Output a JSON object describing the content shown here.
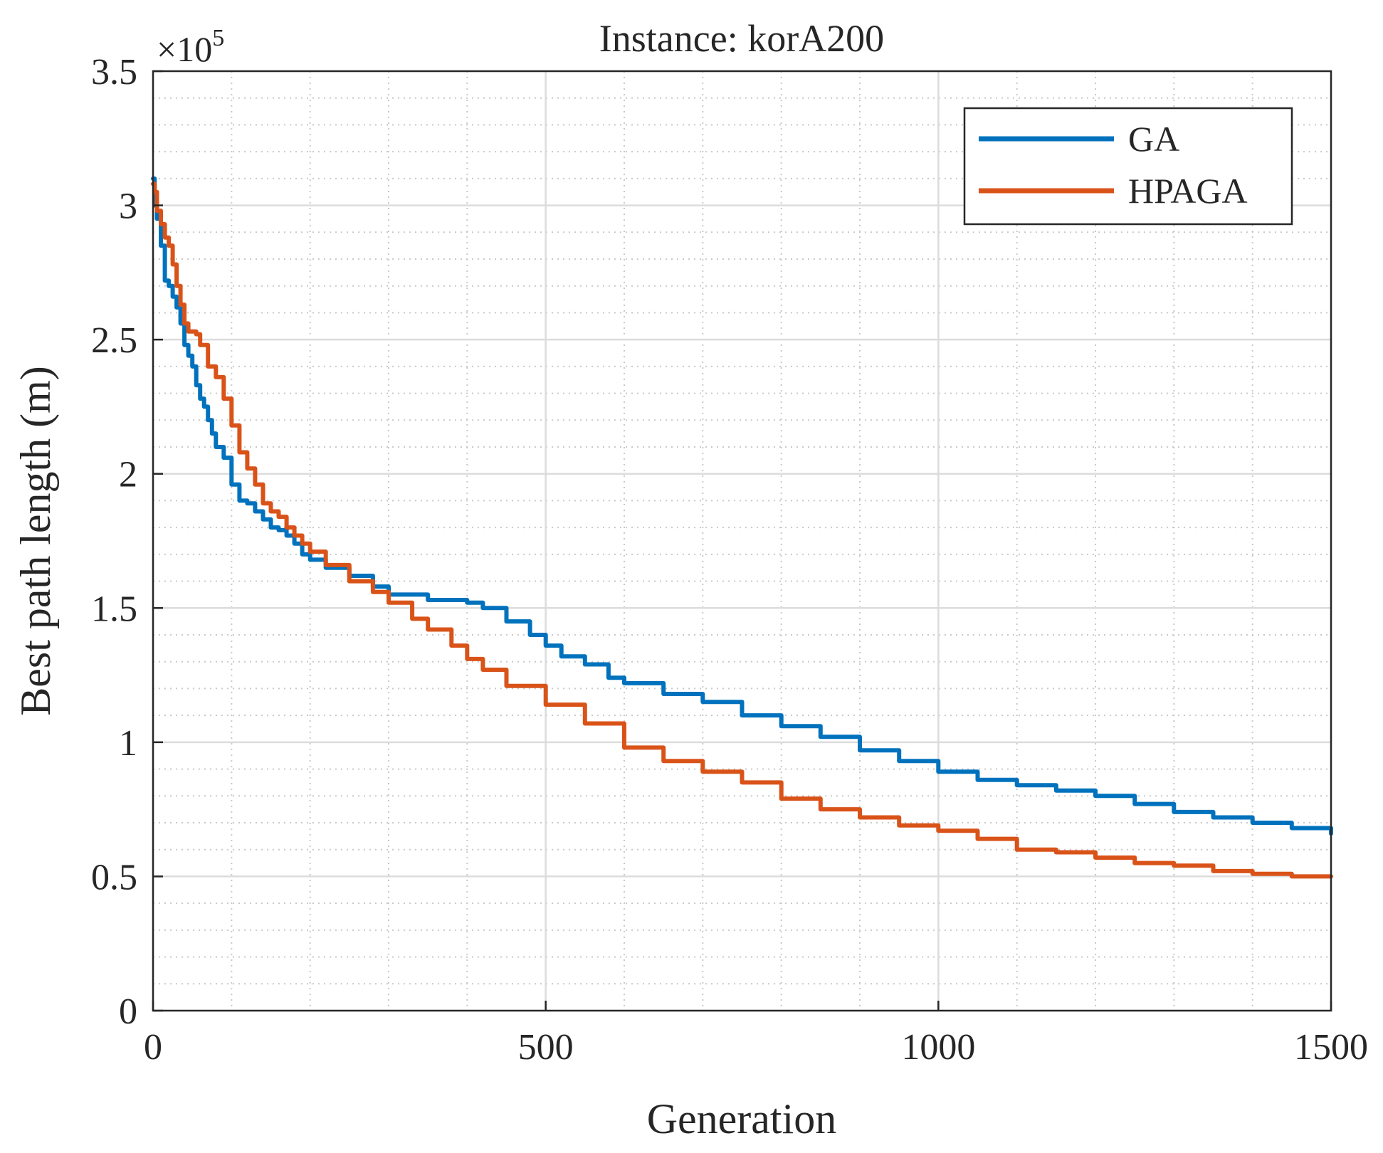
{
  "chart_data": {
    "type": "line",
    "title": "Instance: korA200",
    "xlabel": "Generation",
    "ylabel": "Best path length (m)",
    "y_exponent_label": "×10",
    "y_exponent_power": "5",
    "xlim": [
      0,
      1500
    ],
    "ylim": [
      0,
      3.5
    ],
    "xticks": [
      0,
      500,
      1000,
      1500
    ],
    "xtick_labels": [
      "0",
      "500",
      "1000",
      "1500"
    ],
    "yticks": [
      0,
      0.5,
      1,
      1.5,
      2,
      2.5,
      3,
      3.5
    ],
    "ytick_labels": [
      "0",
      "0.5",
      "1",
      "1.5",
      "2",
      "2.5",
      "3",
      "3.5"
    ],
    "x_minor_step": 100,
    "y_minor_step": 0.1,
    "grid": true,
    "legend_position": "top-right",
    "series": [
      {
        "name": "GA",
        "color": "#0072BD",
        "x": [
          0,
          2,
          5,
          10,
          15,
          20,
          25,
          30,
          35,
          40,
          45,
          50,
          55,
          60,
          65,
          70,
          75,
          80,
          90,
          100,
          110,
          120,
          130,
          140,
          150,
          160,
          170,
          180,
          190,
          200,
          220,
          250,
          280,
          300,
          350,
          400,
          420,
          450,
          480,
          500,
          520,
          550,
          580,
          600,
          650,
          700,
          750,
          800,
          850,
          900,
          950,
          1000,
          1050,
          1100,
          1150,
          1200,
          1250,
          1300,
          1350,
          1400,
          1450,
          1500
        ],
        "y": [
          3.1,
          3.0,
          2.95,
          2.85,
          2.72,
          2.7,
          2.66,
          2.62,
          2.56,
          2.48,
          2.44,
          2.4,
          2.33,
          2.28,
          2.25,
          2.2,
          2.15,
          2.1,
          2.06,
          1.96,
          1.9,
          1.89,
          1.86,
          1.83,
          1.8,
          1.79,
          1.77,
          1.74,
          1.7,
          1.68,
          1.65,
          1.62,
          1.58,
          1.55,
          1.53,
          1.52,
          1.5,
          1.45,
          1.4,
          1.36,
          1.32,
          1.29,
          1.24,
          1.22,
          1.18,
          1.15,
          1.1,
          1.06,
          1.02,
          0.97,
          0.93,
          0.89,
          0.86,
          0.84,
          0.82,
          0.8,
          0.77,
          0.74,
          0.72,
          0.7,
          0.68,
          0.66
        ]
      },
      {
        "name": "HPAGA",
        "color": "#D95319",
        "x": [
          0,
          2,
          5,
          10,
          15,
          20,
          25,
          30,
          35,
          40,
          45,
          50,
          55,
          60,
          70,
          80,
          90,
          100,
          110,
          120,
          130,
          140,
          150,
          160,
          170,
          180,
          190,
          200,
          220,
          250,
          280,
          300,
          330,
          350,
          380,
          400,
          420,
          450,
          500,
          550,
          600,
          650,
          700,
          750,
          800,
          850,
          900,
          950,
          1000,
          1050,
          1100,
          1150,
          1200,
          1250,
          1300,
          1350,
          1400,
          1450,
          1500
        ],
        "y": [
          3.08,
          3.05,
          2.98,
          2.93,
          2.88,
          2.85,
          2.78,
          2.7,
          2.63,
          2.56,
          2.53,
          2.53,
          2.52,
          2.48,
          2.4,
          2.36,
          2.28,
          2.18,
          2.08,
          2.02,
          1.96,
          1.89,
          1.86,
          1.84,
          1.8,
          1.77,
          1.74,
          1.71,
          1.66,
          1.6,
          1.56,
          1.52,
          1.46,
          1.42,
          1.36,
          1.31,
          1.27,
          1.21,
          1.14,
          1.07,
          0.98,
          0.93,
          0.89,
          0.85,
          0.79,
          0.75,
          0.72,
          0.69,
          0.67,
          0.64,
          0.6,
          0.59,
          0.57,
          0.55,
          0.54,
          0.52,
          0.51,
          0.5,
          0.5
        ]
      }
    ]
  }
}
